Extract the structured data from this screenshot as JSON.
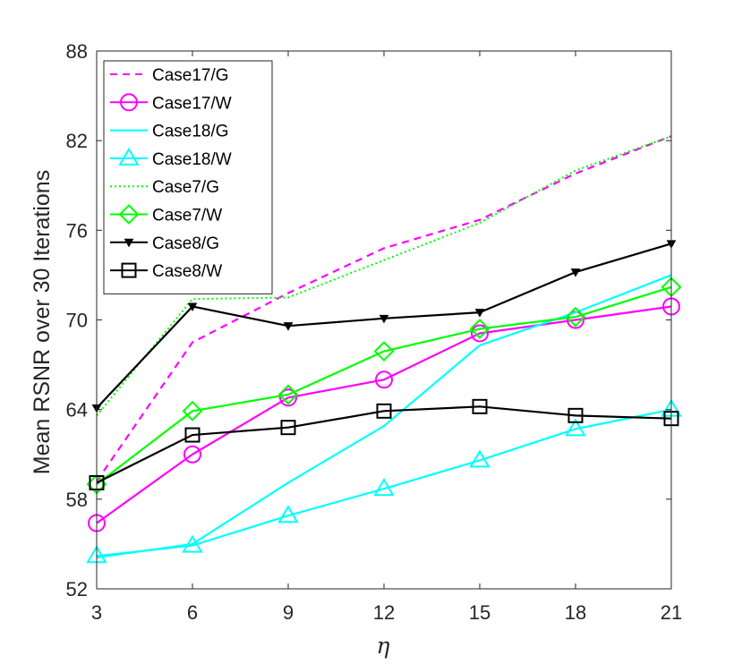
{
  "chart_data": {
    "type": "line",
    "title": "",
    "xlabel": "η",
    "ylabel": "Mean RSNR over 30 Iterations",
    "x": [
      3,
      6,
      9,
      12,
      15,
      18,
      21
    ],
    "xlim": [
      3,
      21
    ],
    "ylim": [
      52,
      88
    ],
    "xticks": [
      "3",
      "6",
      "9",
      "12",
      "15",
      "18",
      "21"
    ],
    "yticks": [
      "52",
      "58",
      "64",
      "70",
      "76",
      "82",
      "88"
    ],
    "legend_position": "top-left",
    "series": [
      {
        "name": "Case17/G",
        "color": "#ff00ff",
        "style": "dashed",
        "marker": "none",
        "values": [
          59.2,
          68.5,
          71.8,
          74.8,
          76.7,
          79.8,
          82.3
        ]
      },
      {
        "name": "Case17/W",
        "color": "#ff00ff",
        "style": "solid",
        "marker": "circle",
        "values": [
          56.4,
          61.0,
          64.8,
          66.0,
          69.1,
          70.0,
          70.9
        ]
      },
      {
        "name": "Case18/G",
        "color": "#00ffff",
        "style": "solid",
        "marker": "none",
        "values": [
          54.1,
          55.0,
          59.1,
          62.9,
          68.3,
          70.5,
          73.0
        ]
      },
      {
        "name": "Case18/W",
        "color": "#00ffff",
        "style": "solid",
        "marker": "triangle-up",
        "values": [
          54.2,
          54.9,
          56.9,
          58.7,
          60.6,
          62.7,
          64.0
        ]
      },
      {
        "name": "Case7/G",
        "color": "#00ff00",
        "style": "dotted",
        "marker": "none",
        "values": [
          63.6,
          71.4,
          71.5,
          74.0,
          76.5,
          80.0,
          82.3
        ]
      },
      {
        "name": "Case7/W",
        "color": "#00ff00",
        "style": "solid",
        "marker": "diamond",
        "values": [
          59.0,
          63.9,
          65.0,
          67.9,
          69.4,
          70.2,
          72.2
        ]
      },
      {
        "name": "Case8/G",
        "color": "#000000",
        "style": "solid",
        "marker": "triangle-down",
        "values": [
          64.1,
          70.9,
          69.6,
          70.1,
          70.5,
          73.2,
          75.1
        ]
      },
      {
        "name": "Case8/W",
        "color": "#000000",
        "style": "solid",
        "marker": "square",
        "values": [
          59.1,
          62.3,
          62.8,
          63.9,
          64.2,
          63.6,
          63.4
        ]
      }
    ]
  }
}
